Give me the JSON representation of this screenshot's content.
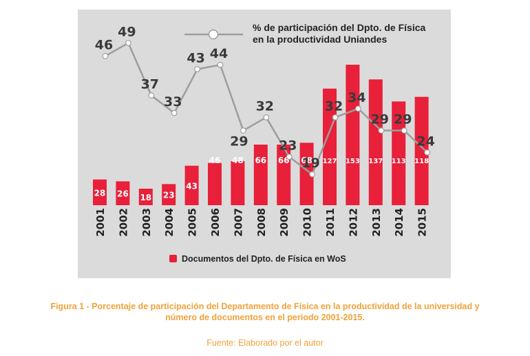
{
  "chart_data": {
    "type": "bar+line",
    "categories": [
      "2001",
      "2002",
      "2003",
      "2004",
      "2005",
      "2006",
      "2007",
      "2008",
      "2009",
      "2010",
      "2011",
      "2012",
      "2013",
      "2014",
      "2015"
    ],
    "bars": {
      "name": "Documentos del Dpto. de Física en WoS",
      "values": [
        28,
        26,
        18,
        23,
        43,
        46,
        48,
        66,
        66,
        68,
        127,
        153,
        137,
        113,
        118
      ],
      "color": "#e8203a"
    },
    "line": {
      "name_line1": "% de participación del Dpto. de Física",
      "name_line2": "en la productividad Uniandes",
      "values": [
        46,
        49,
        37,
        33,
        43,
        44,
        29,
        32,
        23,
        19,
        32,
        34,
        29,
        29,
        24
      ],
      "color": "#9d9d9d"
    },
    "legend_position": "top-right and bottom",
    "grid": false
  },
  "caption": {
    "title_line1": "Figura 1 - Porcentaje de participación del Departamento de Física en la productividad de la universidad y",
    "title_line2": "número de documentos en el periodo 2001-2015.",
    "source": "Fuente: Elaborado por el autor"
  },
  "colors": {
    "panel_bg": "#dcdbdb",
    "bar": "#e8203a",
    "line": "#9d9d9d",
    "caption": "#f0a23a",
    "text_dark": "#222222"
  }
}
